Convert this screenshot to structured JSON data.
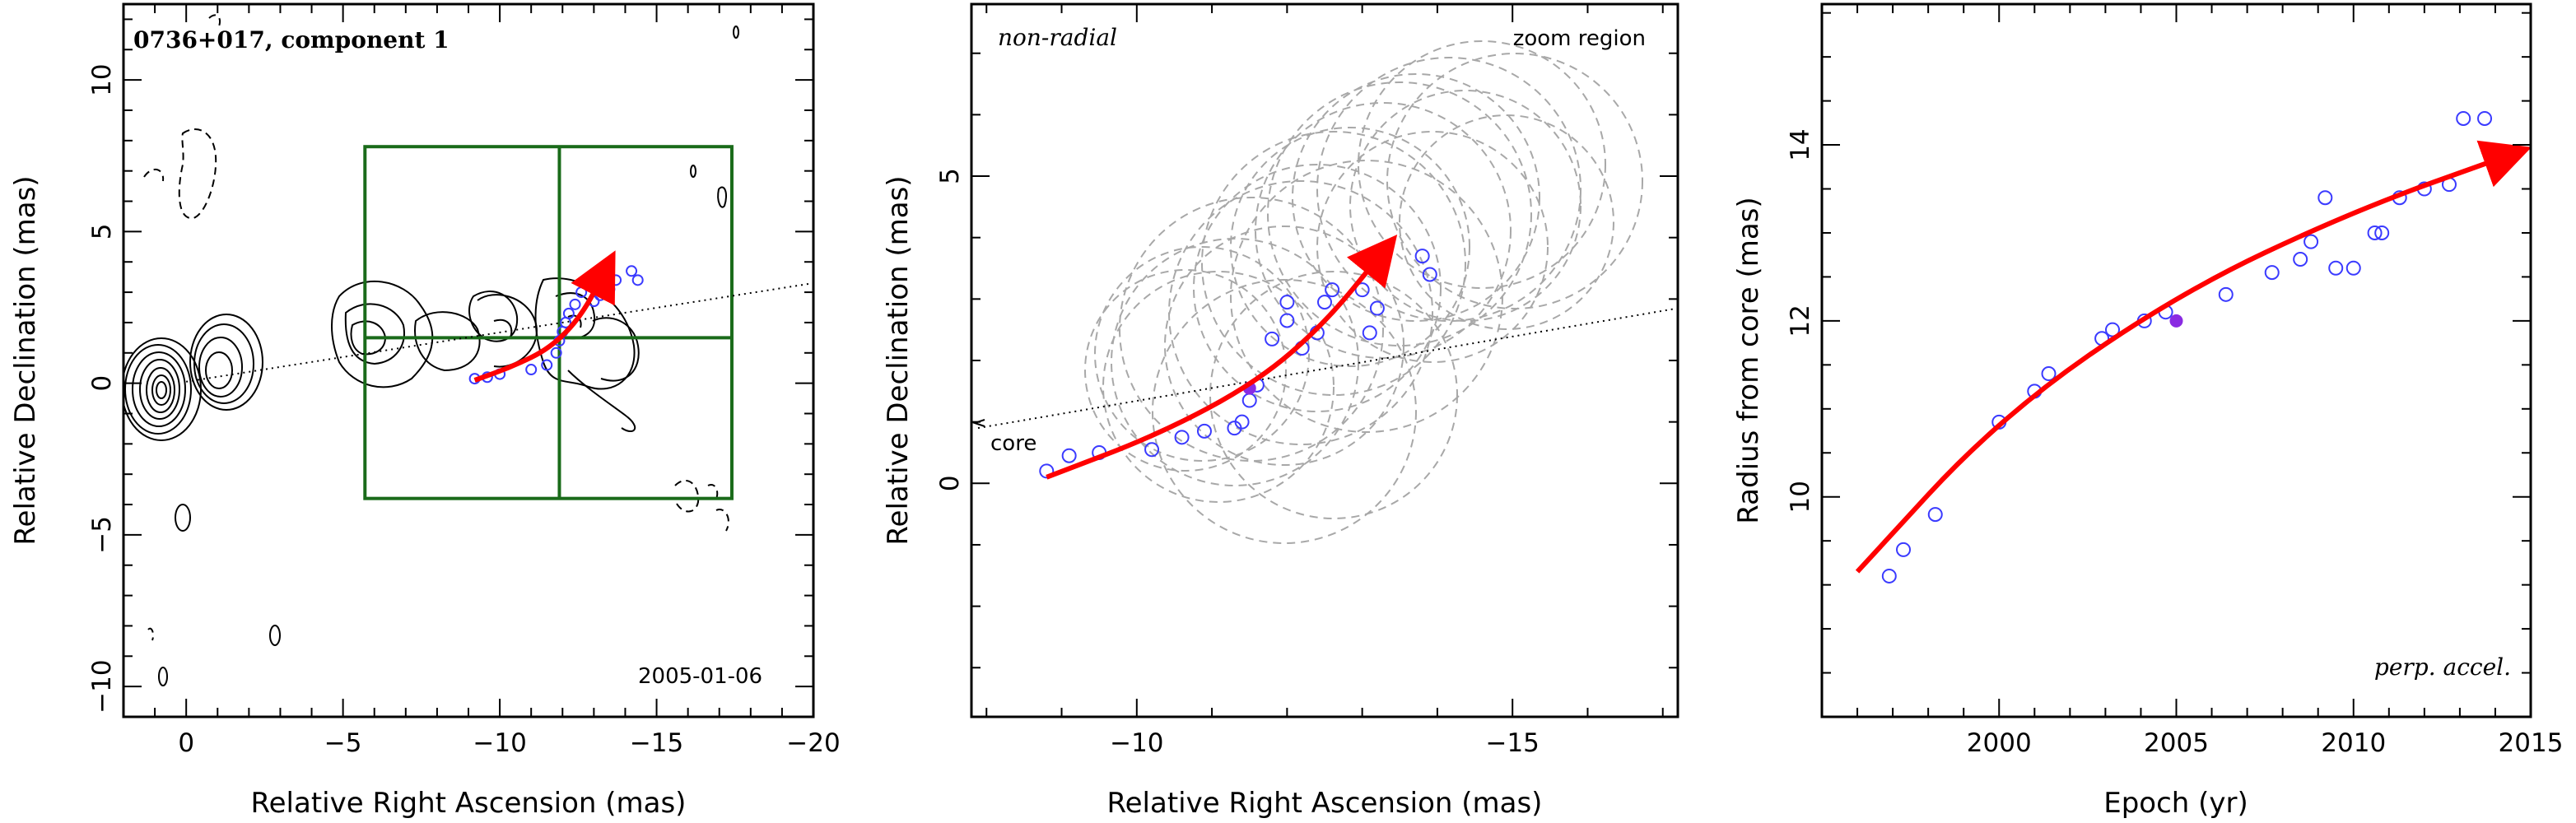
{
  "chart_data": [
    {
      "type": "scatter",
      "panel": "contour-map",
      "title": "0736+017, component 1",
      "xlabel": "Relative Right Ascension (mas)",
      "ylabel": "Relative Declination (mas)",
      "xlim": [
        2,
        -20
      ],
      "ylim": [
        -11,
        12.5
      ],
      "xticks": [
        0,
        -5,
        -10,
        -15,
        -20
      ],
      "yticks": [
        -10,
        -5,
        0,
        5,
        10
      ],
      "date_label": "2005-01-06",
      "zoom_box": {
        "x": [
          -5.7,
          -17.4
        ],
        "y": [
          -3.8,
          7.8
        ]
      },
      "points": [
        [
          -9.2,
          0.15
        ],
        [
          -9.6,
          0.2
        ],
        [
          -10.0,
          0.3
        ],
        [
          -11.0,
          0.45
        ],
        [
          -11.5,
          0.6
        ],
        [
          -11.8,
          1.0
        ],
        [
          -11.9,
          1.4
        ],
        [
          -12.0,
          1.7
        ],
        [
          -12.1,
          2.0
        ],
        [
          -12.2,
          2.3
        ],
        [
          -12.4,
          2.6
        ],
        [
          -12.6,
          3.0
        ],
        [
          -13.0,
          2.7
        ],
        [
          -13.2,
          2.9
        ],
        [
          -13.5,
          3.1
        ],
        [
          -13.7,
          3.4
        ],
        [
          -14.2,
          3.7
        ],
        [
          -14.4,
          3.4
        ]
      ],
      "trajectory": [
        [
          -9.2,
          0.1
        ],
        [
          -10.4,
          0.55
        ],
        [
          -11.6,
          1.15
        ],
        [
          -12.6,
          2.2
        ],
        [
          -13.4,
          3.8
        ]
      ]
    },
    {
      "type": "scatter",
      "panel": "zoom",
      "title_left": "non-radial",
      "title_right": "zoom region",
      "annotation": "core",
      "xlabel": "Relative Right Ascension (mas)",
      "ylabel": "Relative Declination (mas)",
      "xlim": [
        -7.8,
        -17.2
      ],
      "ylim": [
        -3.8,
        7.8
      ],
      "xticks": [
        -10,
        -15
      ],
      "yticks": [
        0,
        5
      ],
      "points": [
        [
          -8.8,
          0.2
        ],
        [
          -9.1,
          0.45
        ],
        [
          -9.5,
          0.5
        ],
        [
          -10.2,
          0.55
        ],
        [
          -10.6,
          0.75
        ],
        [
          -10.9,
          0.85
        ],
        [
          -11.3,
          0.9
        ],
        [
          -11.4,
          1.0
        ],
        [
          -11.5,
          1.35
        ],
        [
          -11.6,
          1.6
        ],
        [
          -11.8,
          2.35
        ],
        [
          -12.0,
          2.65
        ],
        [
          -12.0,
          2.95
        ],
        [
          -12.2,
          2.2
        ],
        [
          -12.4,
          2.45
        ],
        [
          -12.5,
          2.95
        ],
        [
          -12.6,
          3.15
        ],
        [
          -13.0,
          3.15
        ],
        [
          -13.1,
          2.45
        ],
        [
          -13.2,
          2.85
        ],
        [
          -13.8,
          3.7
        ],
        [
          -13.9,
          3.4
        ]
      ],
      "filled_point": [
        -11.5,
        1.55
      ],
      "trajectory": [
        [
          -8.8,
          0.1
        ],
        [
          -10.3,
          0.8
        ],
        [
          -11.6,
          1.65
        ],
        [
          -12.5,
          2.6
        ],
        [
          -13.3,
          3.8
        ]
      ]
    },
    {
      "type": "scatter",
      "panel": "radius-vs-epoch",
      "xlabel": "Epoch (yr)",
      "ylabel": "Radius from core (mas)",
      "xlim": [
        1995,
        2015
      ],
      "ylim": [
        7.5,
        15.6
      ],
      "xticks": [
        2000,
        2005,
        2010,
        2015
      ],
      "yticks": [
        10,
        12,
        14
      ],
      "annotation": "perp. accel.",
      "points": [
        [
          1996.9,
          9.1
        ],
        [
          1997.3,
          9.4
        ],
        [
          1998.2,
          9.8
        ],
        [
          2000.0,
          10.85
        ],
        [
          2001.0,
          11.2
        ],
        [
          2001.4,
          11.4
        ],
        [
          2002.9,
          11.8
        ],
        [
          2003.2,
          11.9
        ],
        [
          2004.1,
          12.0
        ],
        [
          2004.7,
          12.1
        ],
        [
          2006.4,
          12.3
        ],
        [
          2007.7,
          12.55
        ],
        [
          2008.5,
          12.7
        ],
        [
          2008.8,
          12.9
        ],
        [
          2009.2,
          13.4
        ],
        [
          2009.5,
          12.6
        ],
        [
          2010.0,
          12.6
        ],
        [
          2010.6,
          13.0
        ],
        [
          2010.8,
          13.0
        ],
        [
          2011.3,
          13.4
        ],
        [
          2012.0,
          13.5
        ],
        [
          2012.7,
          13.55
        ],
        [
          2013.1,
          14.3
        ],
        [
          2013.7,
          14.3
        ]
      ],
      "filled_point": [
        2005.0,
        12.0
      ],
      "trajectory": [
        [
          1996.0,
          9.15
        ],
        [
          2000.0,
          10.9
        ],
        [
          2005.0,
          12.3
        ],
        [
          2010.0,
          13.25
        ],
        [
          2014.5,
          13.9
        ]
      ]
    }
  ]
}
